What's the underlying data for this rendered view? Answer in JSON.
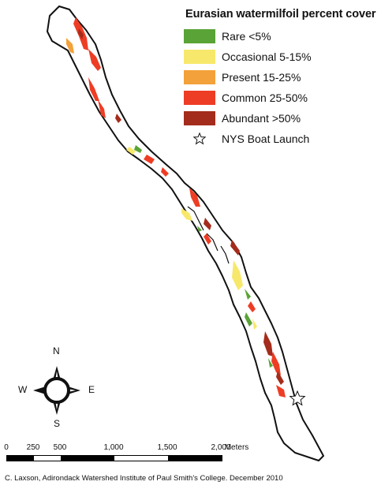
{
  "legend": {
    "title": "Eurasian watermilfoil percent cover",
    "items": [
      {
        "label": "Rare <5%",
        "color": "#5aa336"
      },
      {
        "label": "Occasional 5-15%",
        "color": "#f7e86b"
      },
      {
        "label": "Present 15-25%",
        "color": "#f3a13a"
      },
      {
        "label": "Common 25-50%",
        "color": "#ee3d25"
      },
      {
        "label": "Abundant >50%",
        "color": "#a42c1c"
      }
    ],
    "launch": {
      "label": "NYS Boat Launch",
      "icon": "star-icon"
    }
  },
  "compass": {
    "n": "N",
    "s": "S",
    "e": "E",
    "w": "W"
  },
  "scale": {
    "ticks": [
      "0",
      "250",
      "500",
      "1,000",
      "1,500",
      "2,000"
    ],
    "unit": "Meters"
  },
  "credit": "C. Laxson, Adirondack Watershed Institute of Paul Smith's College. December 2010"
}
